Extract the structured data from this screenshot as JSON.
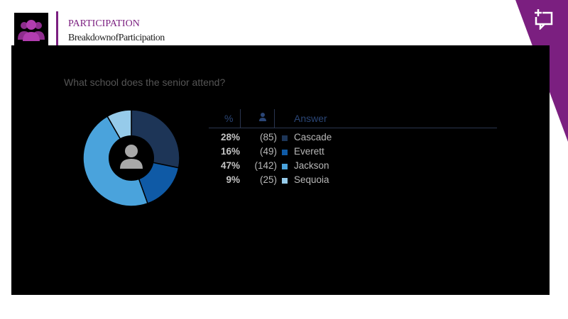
{
  "header": {
    "title": "PARTICIPATION",
    "subtitle": "BreakdownofParticipation"
  },
  "colors": {
    "accent": "#7b1f80",
    "panel": "#000000"
  },
  "chart_data": {
    "type": "pie",
    "donut": true,
    "title": "What school does the senior attend?",
    "columns": {
      "percent": "%",
      "count_icon": "user-icon",
      "answer": "Answer"
    },
    "categories": [
      "Cascade",
      "Everett",
      "Jackson",
      "Sequoia"
    ],
    "percent_labels": [
      "28%",
      "16%",
      "47%",
      "9%"
    ],
    "count_labels": [
      "(85)",
      "(49)",
      "(142)",
      "(25)"
    ],
    "values": [
      85,
      49,
      142,
      25
    ],
    "colors": [
      "#1d3557",
      "#0f5aa6",
      "#4aa3dc",
      "#96cbea"
    ],
    "legend_placement": "right"
  }
}
